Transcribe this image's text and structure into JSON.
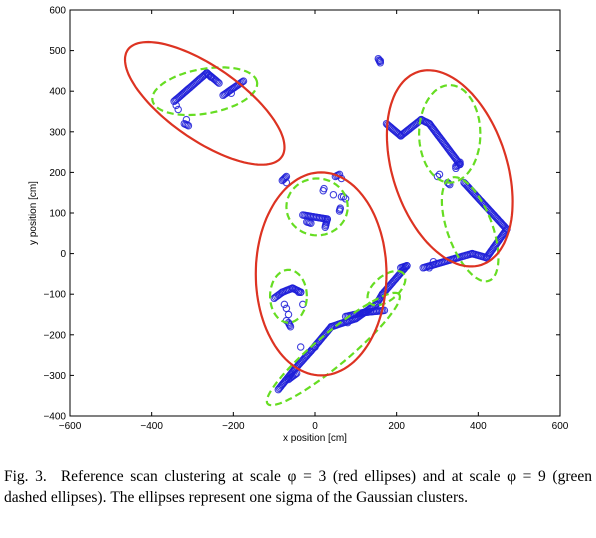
{
  "chart_data": {
    "type": "scatter",
    "xlabel": "x position [cm]",
    "ylabel": "y position [cm]",
    "xlim": [
      -600,
      600
    ],
    "ylim": [
      -400,
      600
    ],
    "xticks": [
      -600,
      -400,
      -200,
      0,
      200,
      400,
      600
    ],
    "yticks": [
      -400,
      -300,
      -200,
      -100,
      0,
      100,
      200,
      300,
      400,
      500,
      600
    ],
    "grid": false,
    "colors": {
      "points": "#1f1fd8",
      "red_ellipse": "#dd3322",
      "green_ellipse": "#66dd22"
    },
    "red_ellipses": [
      {
        "cx": -270,
        "cy": 370,
        "rx": 230,
        "ry": 90,
        "angle_deg": -35
      },
      {
        "cx": 15,
        "cy": -50,
        "rx": 160,
        "ry": 250,
        "angle_deg": 0
      },
      {
        "cx": 330,
        "cy": 210,
        "rx": 140,
        "ry": 250,
        "angle_deg": 18
      }
    ],
    "green_ellipses": [
      {
        "cx": -270,
        "cy": 400,
        "rx": 130,
        "ry": 55,
        "angle_deg": 10
      },
      {
        "cx": 5,
        "cy": 115,
        "rx": 75,
        "ry": 70,
        "angle_deg": 0
      },
      {
        "cx": -65,
        "cy": -105,
        "rx": 45,
        "ry": 65,
        "angle_deg": 0
      },
      {
        "cx": 330,
        "cy": 295,
        "rx": 75,
        "ry": 120,
        "angle_deg": 0
      },
      {
        "cx": 380,
        "cy": 60,
        "rx": 55,
        "ry": 135,
        "angle_deg": 20
      },
      {
        "cx": 45,
        "cy": -235,
        "rx": 210,
        "ry": 40,
        "angle_deg": 40
      },
      {
        "cx": 175,
        "cy": -85,
        "rx": 55,
        "ry": 30,
        "angle_deg": 40
      }
    ],
    "point_paths": [
      [
        [
          -345,
          375
        ],
        [
          -265,
          445
        ],
        [
          -235,
          420
        ]
      ],
      [
        [
          -225,
          390
        ],
        [
          -175,
          425
        ]
      ],
      [
        [
          -320,
          320
        ],
        [
          -310,
          315
        ]
      ],
      [
        [
          -80,
          180
        ],
        [
          -70,
          190
        ]
      ],
      [
        [
          50,
          190
        ],
        [
          60,
          195
        ]
      ],
      [
        [
          20,
          155
        ],
        [
          22,
          160
        ]
      ],
      [
        [
          60,
          105
        ],
        [
          62,
          112
        ]
      ],
      [
        [
          -30,
          95
        ],
        [
          30,
          85
        ],
        [
          25,
          65
        ]
      ],
      [
        [
          -10,
          75
        ],
        [
          -20,
          78
        ]
      ],
      [
        [
          155,
          480
        ],
        [
          160,
          470
        ]
      ],
      [
        [
          175,
          320
        ],
        [
          210,
          290
        ],
        [
          260,
          330
        ],
        [
          280,
          320
        ],
        [
          355,
          220
        ],
        [
          345,
          215
        ]
      ],
      [
        [
          365,
          175
        ],
        [
          470,
          60
        ],
        [
          420,
          -10
        ],
        [
          385,
          0
        ],
        [
          350,
          -10
        ],
        [
          265,
          -35
        ]
      ],
      [
        [
          330,
          170
        ],
        [
          325,
          175
        ]
      ],
      [
        [
          -100,
          -110
        ],
        [
          -80,
          -95
        ],
        [
          -55,
          -85
        ],
        [
          -35,
          -95
        ],
        [
          -40,
          -95
        ]
      ],
      [
        [
          -65,
          -170
        ],
        [
          -60,
          -180
        ]
      ],
      [
        [
          -90,
          -335
        ],
        [
          -50,
          -285
        ],
        [
          -10,
          -240
        ],
        [
          40,
          -180
        ],
        [
          100,
          -160
        ],
        [
          150,
          -125
        ],
        [
          165,
          -100
        ],
        [
          225,
          -30
        ],
        [
          210,
          -35
        ]
      ],
      [
        [
          75,
          -155
        ],
        [
          120,
          -145
        ],
        [
          170,
          -140
        ]
      ],
      [
        [
          -45,
          -295
        ],
        [
          -65,
          -310
        ]
      ]
    ],
    "scatter_points": [
      [
        -340,
        365
      ],
      [
        -335,
        355
      ],
      [
        -260,
        440
      ],
      [
        -255,
        435
      ],
      [
        -315,
        330
      ],
      [
        -205,
        395
      ],
      [
        -70,
        175
      ],
      [
        65,
        185
      ],
      [
        70,
        140
      ],
      [
        65,
        140
      ],
      [
        75,
        135
      ],
      [
        45,
        145
      ],
      [
        -75,
        -125
      ],
      [
        -70,
        -135
      ],
      [
        -65,
        -150
      ],
      [
        -70,
        -165
      ],
      [
        -30,
        -125
      ],
      [
        280,
        -35
      ],
      [
        290,
        -20
      ],
      [
        300,
        190
      ],
      [
        305,
        195
      ],
      [
        355,
        225
      ],
      [
        345,
        210
      ],
      [
        160,
        475
      ],
      [
        -35,
        -230
      ],
      [
        0,
        -230
      ],
      [
        80,
        -170
      ]
    ]
  },
  "caption": {
    "label": "Fig. 3.",
    "text": "Reference scan clustering at scale φ = 3 (red ellipses) and at scale φ = 9 (green dashed ellipses). The ellipses represent one sigma of the Gaussian clusters."
  }
}
